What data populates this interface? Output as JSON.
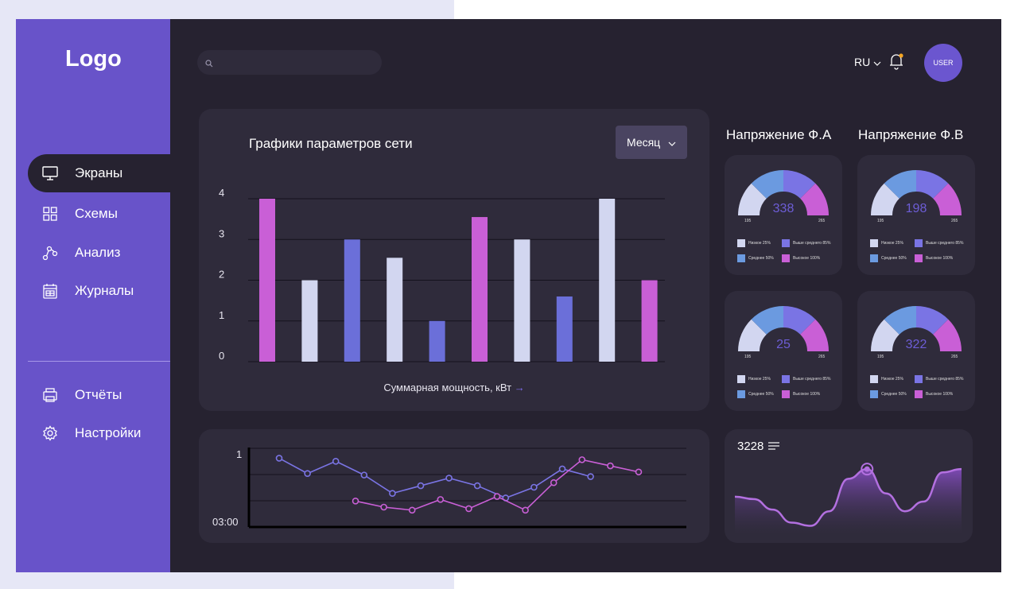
{
  "app": {
    "logo": "Logo"
  },
  "sidebar": {
    "items": [
      {
        "label": "Экраны"
      },
      {
        "label": "Схемы"
      },
      {
        "label": "Анализ"
      },
      {
        "label": "Журналы"
      },
      {
        "label": "Отчёты"
      },
      {
        "label": "Настройки"
      }
    ]
  },
  "header": {
    "search_placeholder": "",
    "lang": "RU",
    "user": "USER"
  },
  "colors": {
    "accent": "#6853c9",
    "background": "#262230",
    "card": "#2f2b3b",
    "series_magenta": "#c95fd6",
    "series_light": "#d2d6f0",
    "series_blue": "#6b6fd9"
  },
  "main_chart": {
    "title": "Графики параметров сети",
    "period": "Месяц",
    "caption": "Суммарная мощность, кВт",
    "arrow": "→"
  },
  "gauges": {
    "titles": [
      "Напряжение Ф.А",
      "Напряжение Ф.В"
    ],
    "items": [
      {
        "value": "338",
        "min": "195",
        "max": "265"
      },
      {
        "value": "198",
        "min": "195",
        "max": "265"
      },
      {
        "value": "25",
        "min": "195",
        "max": "265"
      },
      {
        "value": "322",
        "min": "195",
        "max": "265"
      }
    ],
    "legend": {
      "low": "Низкое 25%",
      "mid": "Среднее 50%",
      "above": "Выше среднего 85%",
      "high": "Высокое 100%"
    }
  },
  "wave": {
    "value": "3228"
  },
  "chart_data": [
    {
      "type": "bar",
      "categories": [
        "",
        "",
        "",
        "",
        "",
        "",
        "",
        "",
        "",
        ""
      ],
      "values": [
        4,
        2,
        3,
        2.55,
        1,
        3.55,
        3,
        1.6,
        4,
        2
      ],
      "colors": [
        "#c95fd6",
        "#d2d6f0",
        "#6b6fd9",
        "#d2d6f0",
        "#6b6fd9",
        "#c95fd6",
        "#d2d6f0",
        "#6b6fd9",
        "#d2d6f0",
        "#c95fd6"
      ],
      "yticks": [
        "0",
        "1",
        "2",
        "3",
        "4"
      ],
      "ylim": [
        0,
        4
      ],
      "xlabel": "Суммарная мощность, кВт",
      "grid": true
    },
    {
      "type": "line",
      "yticks_labels": [
        "1",
        "03:00"
      ],
      "series": [
        {
          "color": "#7a74e4",
          "values": [
            1.05,
            0.95,
            1.03,
            0.94,
            0.82,
            0.87,
            0.92,
            0.87,
            0.79,
            0.86,
            0.98,
            0.93
          ]
        },
        {
          "color": "#c95fd6",
          "values": [
            0.77,
            0.73,
            0.71,
            0.78,
            0.72,
            0.8,
            0.71,
            0.89,
            1.04,
            1.0,
            0.96
          ]
        }
      ],
      "ylim": [
        0.6,
        1.12
      ]
    },
    {
      "type": "area",
      "values": [
        0.58,
        0.55,
        0.42,
        0.26,
        0.22,
        0.4,
        0.8,
        0.92,
        0.62,
        0.4,
        0.52,
        0.88,
        0.92
      ],
      "highlight_index": 7,
      "grid": false
    }
  ]
}
